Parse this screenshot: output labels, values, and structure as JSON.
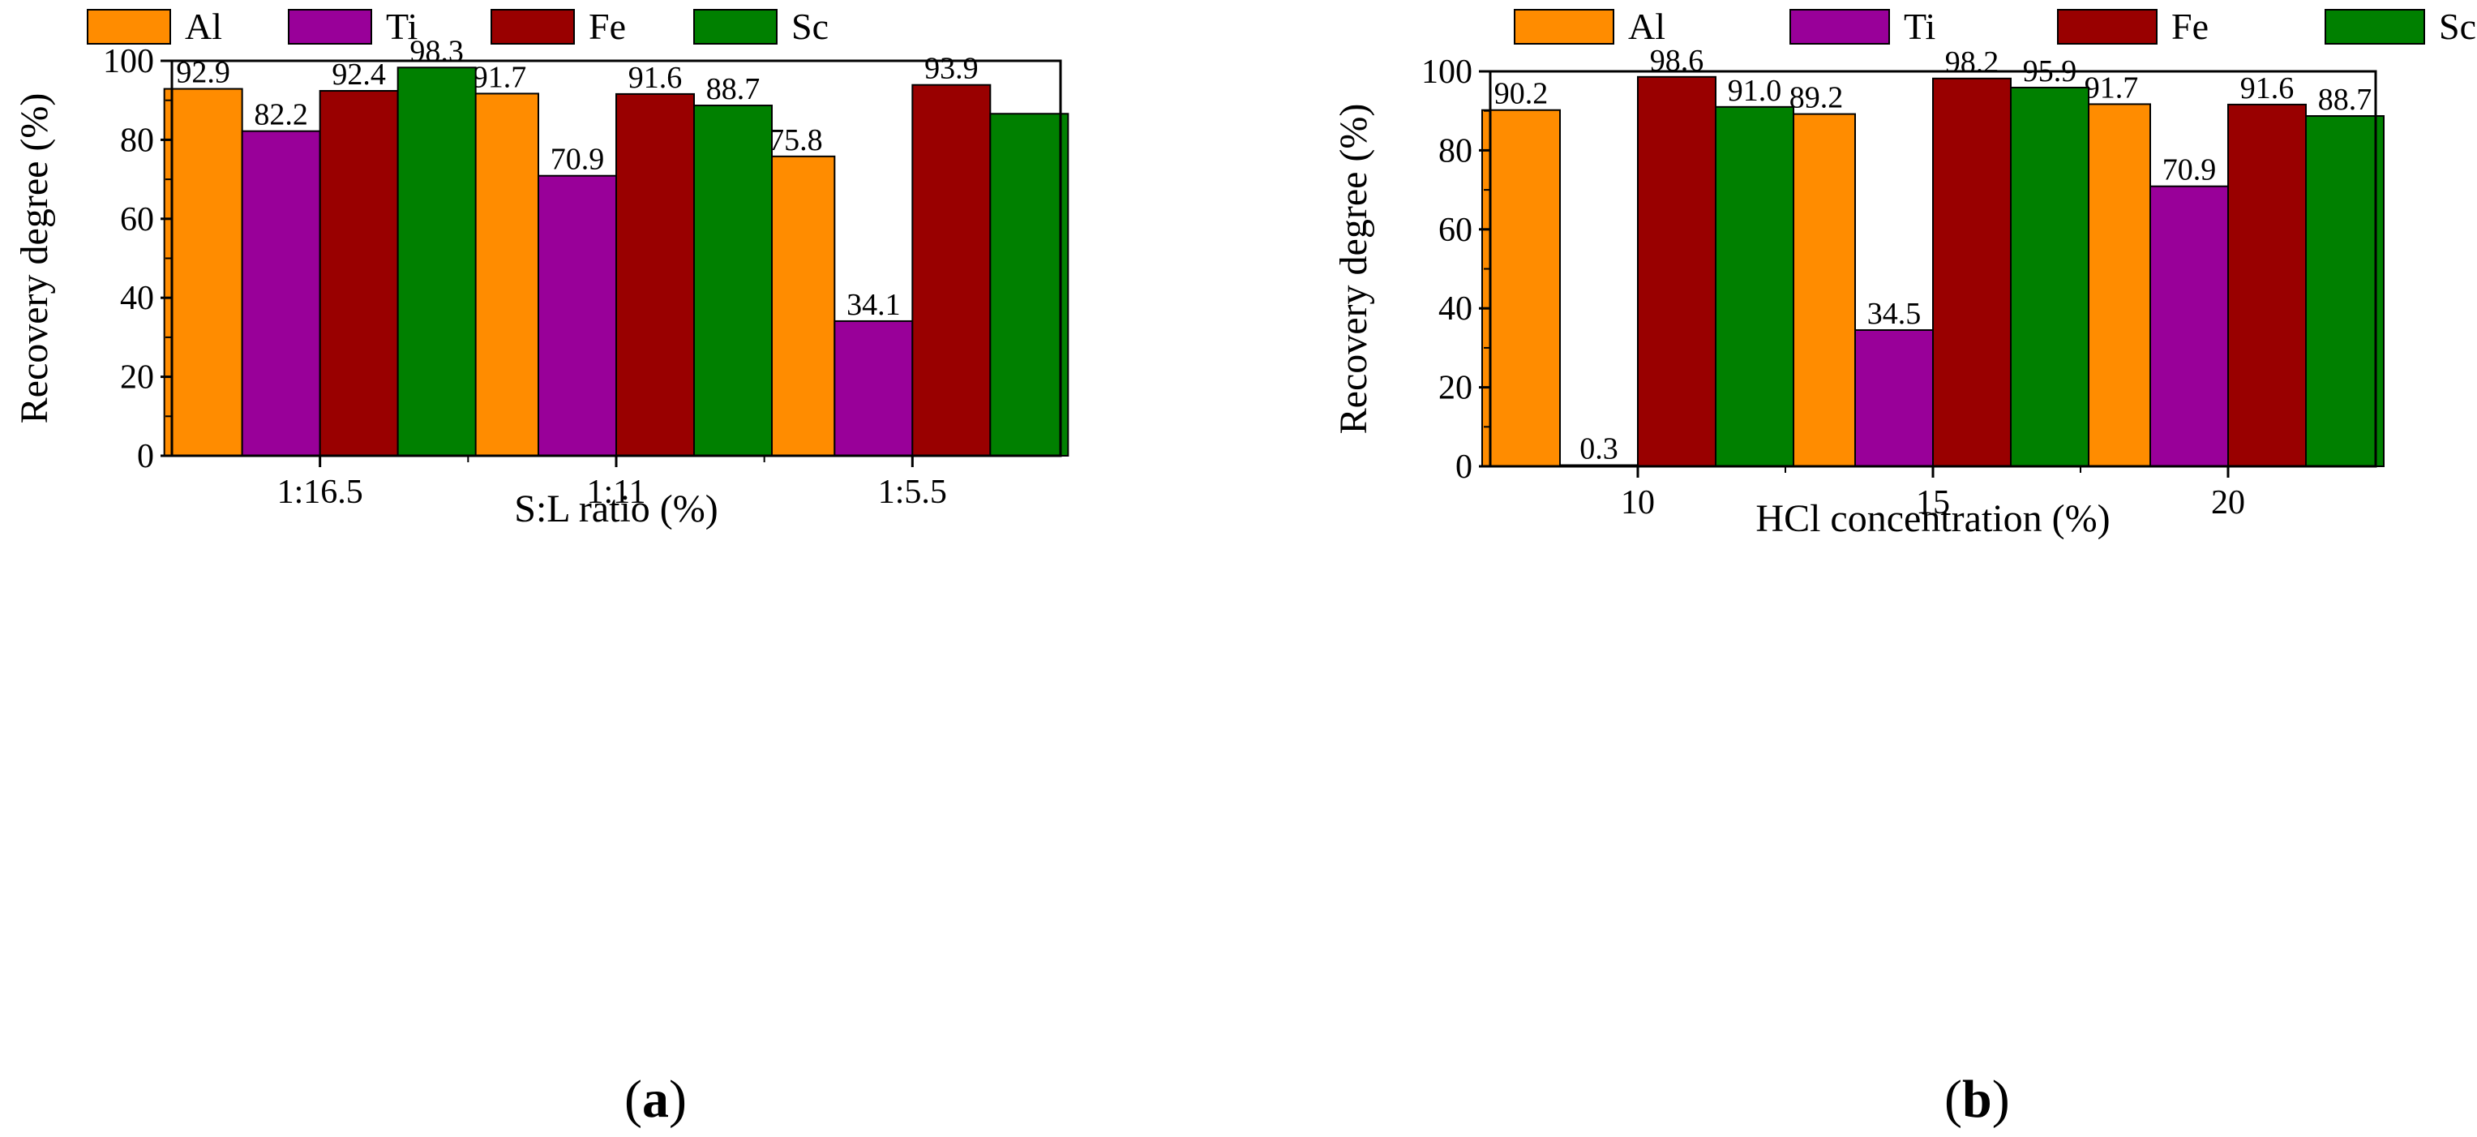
{
  "chart_data": [
    {
      "type": "bar",
      "panel": "(a)",
      "panel_letter": "a",
      "categories": [
        "1:16.5",
        "1:11",
        "1:5.5"
      ],
      "series": [
        {
          "name": "Al",
          "color": "#ff8c00",
          "values": [
            92.9,
            91.7,
            75.8
          ]
        },
        {
          "name": "Ti",
          "color": "#990099",
          "values": [
            82.2,
            70.9,
            34.1
          ]
        },
        {
          "name": "Fe",
          "color": "#990000",
          "values": [
            92.4,
            91.6,
            93.9
          ]
        },
        {
          "name": "Sc",
          "color": "#008000",
          "values": [
            98.3,
            88.7,
            86.6
          ]
        }
      ],
      "data_labels": [
        [
          "92.9",
          "91.7",
          "75.8"
        ],
        [
          "82.2",
          "70.9",
          "34.1"
        ],
        [
          "92.4",
          "91.6",
          "93.9"
        ],
        [
          "98.3",
          "88.7",
          ""
        ]
      ],
      "title": "",
      "xlabel": "S:L ratio (%)",
      "ylabel": "Recovery degree (%)",
      "ylim": [
        0,
        100
      ],
      "yticks": [
        0,
        20,
        40,
        60,
        80,
        100
      ],
      "legend": "top",
      "grid": false
    },
    {
      "type": "bar",
      "panel": "(b)",
      "panel_letter": "b",
      "categories": [
        "10",
        "15",
        "20"
      ],
      "series": [
        {
          "name": "Al",
          "color": "#ff8c00",
          "values": [
            90.2,
            89.2,
            91.7
          ]
        },
        {
          "name": "Ti",
          "color": "#990099",
          "values": [
            0.3,
            34.5,
            70.9
          ]
        },
        {
          "name": "Fe",
          "color": "#990000",
          "values": [
            98.6,
            98.2,
            91.6
          ]
        },
        {
          "name": "Sc",
          "color": "#008000",
          "values": [
            91.0,
            95.9,
            88.7
          ]
        }
      ],
      "data_labels": [
        [
          "90.2",
          "89.2",
          "91.7"
        ],
        [
          "0.3",
          "34.5",
          "70.9"
        ],
        [
          "98.6",
          "98.2",
          "91.6"
        ],
        [
          "91.0",
          "95.9",
          "88.7"
        ]
      ],
      "title": "",
      "xlabel": "HCl concentration (%)",
      "ylabel": "Recovery degree (%)",
      "ylim": [
        0,
        100
      ],
      "yticks": [
        0,
        20,
        40,
        60,
        80,
        100
      ],
      "legend": "top",
      "grid": false
    }
  ],
  "panel_labels": {
    "a": "a",
    "b": "b"
  }
}
